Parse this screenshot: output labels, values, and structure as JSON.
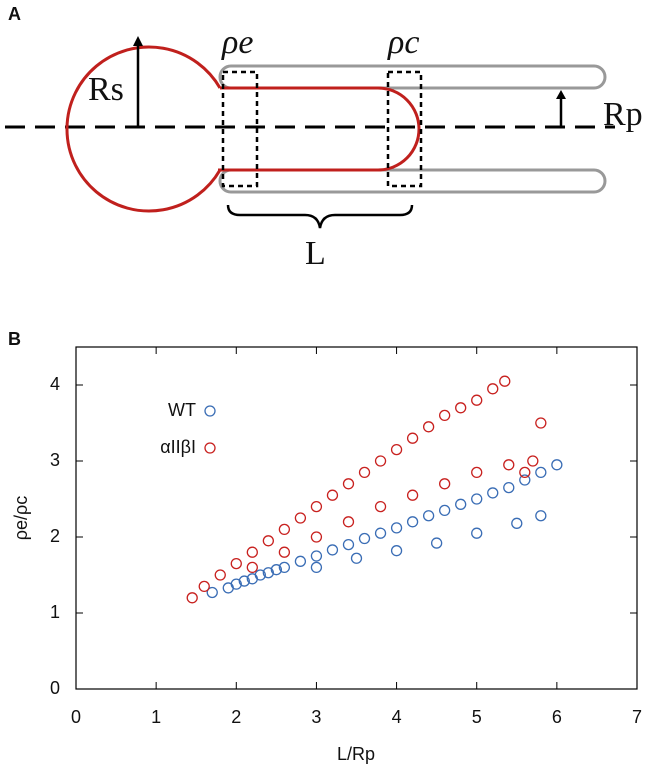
{
  "panel_a": {
    "panel_label": "A",
    "rs_label": "Rs",
    "rho_e_label": "ρe",
    "rho_c_label": "ρc",
    "rp_label": "Rp",
    "l_label": "L"
  },
  "chart_data": {
    "type": "scatter",
    "panel_label": "B",
    "x_label": "L/Rp",
    "y_label": "ρe/ρc",
    "xlim": [
      0,
      7
    ],
    "xticks": [
      0,
      1,
      2,
      3,
      4,
      5,
      6,
      7
    ],
    "ylim": [
      0,
      4.5
    ],
    "yticks": [
      0,
      1,
      2,
      3,
      4
    ],
    "legend": "upper left",
    "series": [
      {
        "name": "WT",
        "color": "#3a6db5",
        "x": [
          1.7,
          1.9,
          2.0,
          2.1,
          2.2,
          2.3,
          2.4,
          2.5,
          2.6,
          2.8,
          3.0,
          3.2,
          3.4,
          3.6,
          3.8,
          4.0,
          4.2,
          4.4,
          4.6,
          4.8,
          5.0,
          5.2,
          5.4,
          5.6,
          5.8,
          6.0,
          3.0,
          3.5,
          4.0,
          4.5,
          5.0,
          5.5,
          5.8
        ],
        "values": [
          1.27,
          1.33,
          1.38,
          1.42,
          1.45,
          1.5,
          1.53,
          1.57,
          1.6,
          1.68,
          1.75,
          1.83,
          1.9,
          1.98,
          2.05,
          2.12,
          2.2,
          2.28,
          2.35,
          2.43,
          2.5,
          2.58,
          2.65,
          2.75,
          2.85,
          2.95,
          1.6,
          1.72,
          1.82,
          1.92,
          2.05,
          2.18,
          2.28
        ]
      },
      {
        "name": "αIIβI",
        "color": "#c8211f",
        "x": [
          1.45,
          1.6,
          1.8,
          2.0,
          2.2,
          2.4,
          2.6,
          2.8,
          3.0,
          3.2,
          3.4,
          3.6,
          3.8,
          4.0,
          4.2,
          4.4,
          4.6,
          4.8,
          5.0,
          5.2,
          5.35,
          2.2,
          2.6,
          3.0,
          3.4,
          3.8,
          4.2,
          4.6,
          5.0,
          5.4,
          5.6,
          5.7,
          5.8
        ],
        "values": [
          1.2,
          1.35,
          1.5,
          1.65,
          1.8,
          1.95,
          2.1,
          2.25,
          2.4,
          2.55,
          2.7,
          2.85,
          3.0,
          3.15,
          3.3,
          3.45,
          3.6,
          3.7,
          3.8,
          3.95,
          4.05,
          1.6,
          1.8,
          2.0,
          2.2,
          2.4,
          2.55,
          2.7,
          2.85,
          2.95,
          2.85,
          3.0,
          3.5
        ]
      }
    ]
  }
}
